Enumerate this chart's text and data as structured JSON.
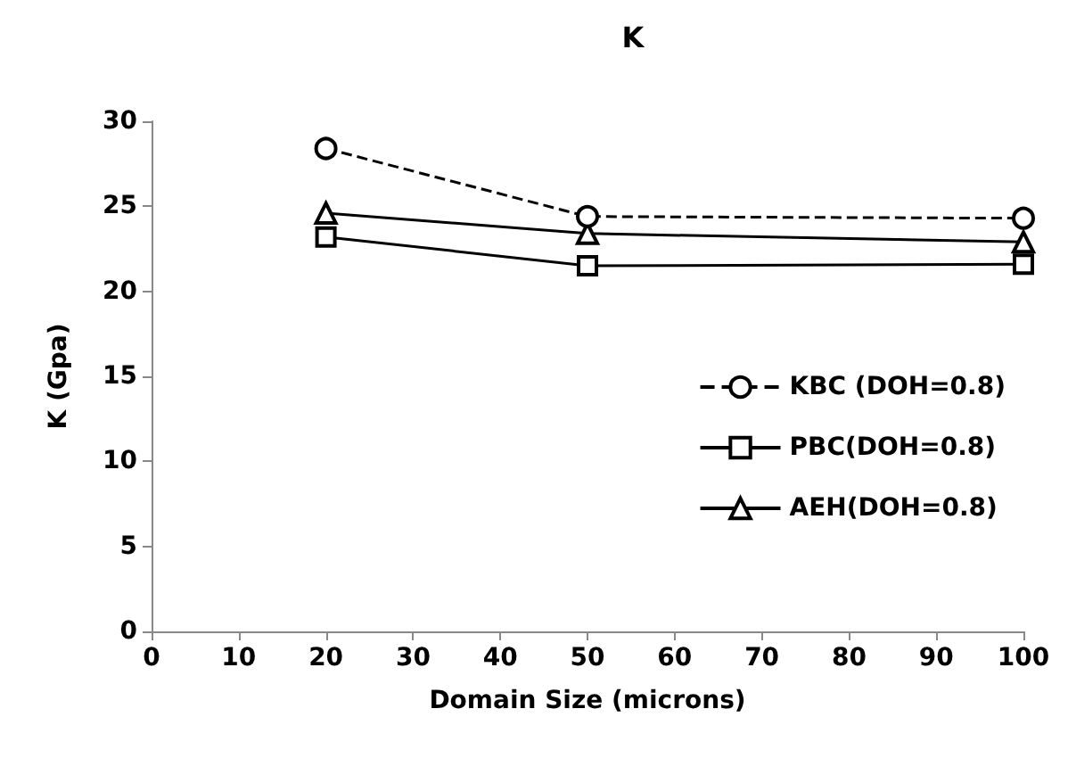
{
  "chart_data": {
    "type": "line",
    "title": "K",
    "xlabel": "Domain Size (microns)",
    "ylabel": "K (Gpa)",
    "x": [
      20,
      50,
      100
    ],
    "series": [
      {
        "name": "KBC (DOH=0.8)",
        "color": "#000000",
        "values": [
          28.4,
          24.4,
          24.3
        ],
        "marker": "circle",
        "line_style": "dashed"
      },
      {
        "name": "PBC(DOH=0.8)",
        "color": "#000000",
        "values": [
          23.2,
          21.5,
          21.6
        ],
        "marker": "square",
        "line_style": "solid"
      },
      {
        "name": "AEH(DOH=0.8)",
        "color": "#000000",
        "values": [
          24.6,
          23.4,
          22.9
        ],
        "marker": "triangle",
        "line_style": "solid"
      }
    ],
    "xlim": [
      0,
      100
    ],
    "xticks": [
      0,
      10,
      20,
      30,
      40,
      50,
      60,
      70,
      80,
      90,
      100
    ],
    "ylim": [
      0,
      30
    ],
    "yticks": [
      0,
      5,
      10,
      15,
      20,
      25,
      30
    ],
    "grid": false,
    "legend": "right"
  }
}
